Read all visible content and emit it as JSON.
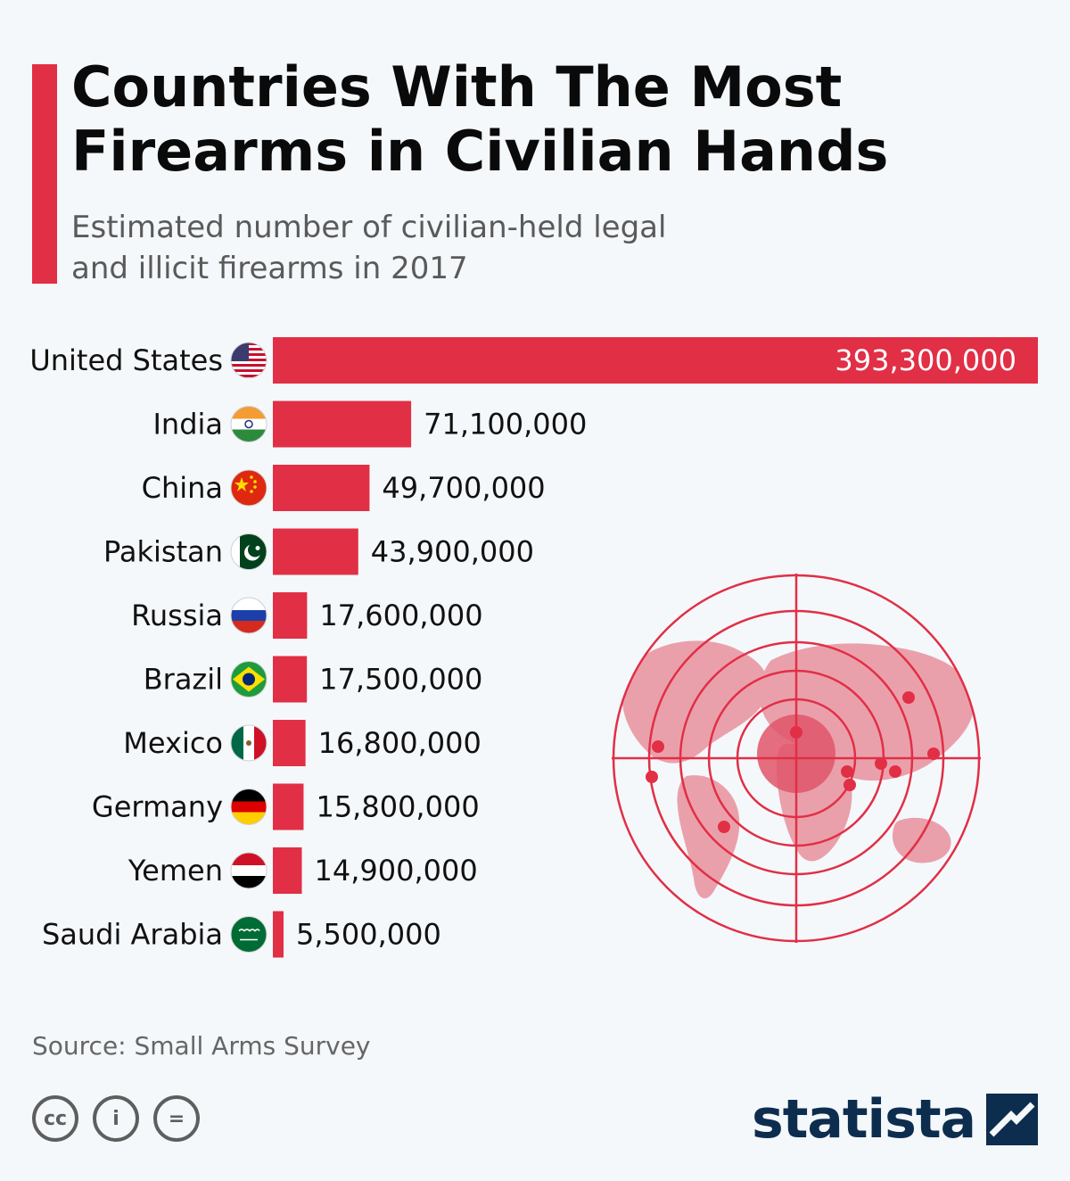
{
  "header": {
    "title_line1": "Countries With The Most",
    "title_line2": "Firearms in Civilian Hands",
    "subtitle_line1": "Estimated number of civilian-held legal",
    "subtitle_line2": "and illicit firearms in 2017"
  },
  "colors": {
    "accent": "#e12f46",
    "brand": "#0d2d4e",
    "map": "#eaa0ab"
  },
  "chart_data": {
    "type": "bar",
    "orientation": "horizontal",
    "title": "Countries With The Most Firearms in Civilian Hands",
    "subtitle": "Estimated number of civilian-held legal and illicit firearms in 2017",
    "categories": [
      "United States",
      "India",
      "China",
      "Pakistan",
      "Russia",
      "Brazil",
      "Mexico",
      "Germany",
      "Yemen",
      "Saudi Arabia"
    ],
    "values": [
      393300000,
      71100000,
      49700000,
      43900000,
      17600000,
      17500000,
      16800000,
      15800000,
      14900000,
      5500000
    ],
    "labels": [
      "393,300,000",
      "71,100,000",
      "49,700,000",
      "43,900,000",
      "17,600,000",
      "17,500,000",
      "16,800,000",
      "15,800,000",
      "14,900,000",
      "5,500,000"
    ],
    "flag_icons": [
      "flag-usa-icon",
      "flag-india-icon",
      "flag-china-icon",
      "flag-pakistan-icon",
      "flag-russia-icon",
      "flag-brazil-icon",
      "flag-mexico-icon",
      "flag-germany-icon",
      "flag-yemen-icon",
      "flag-saudi-arabia-icon"
    ],
    "xlim": [
      0,
      393300000
    ],
    "grid": false,
    "legend": "none",
    "color": "#e12f46"
  },
  "illustration": {
    "name": "world-map-crosshair-icon"
  },
  "footer": {
    "source": "Source: Small Arms Survey",
    "license_icons": [
      "cc-icon",
      "attribution-icon",
      "no-derivatives-icon"
    ],
    "cc_glyph": "cc",
    "by_glyph": "i",
    "nd_glyph": "=",
    "brand": "statista"
  }
}
